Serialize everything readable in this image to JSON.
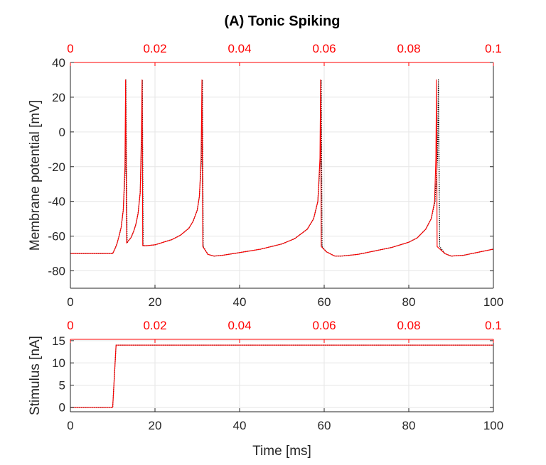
{
  "chart_data": [
    {
      "type": "line",
      "title": "(A) Tonic Spiking",
      "xlabel": "",
      "ylabel": "Membrane potential [mV]",
      "xlim": [
        0,
        100
      ],
      "ylim": [
        -90,
        40
      ],
      "xticks": [
        0,
        20,
        40,
        60,
        80,
        100
      ],
      "yticks": [
        -80,
        -60,
        -40,
        -20,
        0,
        20,
        40
      ],
      "top_axis": {
        "ticks": [
          0,
          0.02,
          0.04,
          0.06,
          0.08,
          0.1
        ],
        "labels": [
          "0",
          "0.02",
          "0.04",
          "0.06",
          "0.08",
          "0.1"
        ],
        "color": "#ff0000",
        "lim": [
          0,
          0.1
        ]
      },
      "grid": true,
      "series": [
        {
          "color": "#000000",
          "style": "dotted",
          "x": [
            0,
            10,
            10.5,
            11,
            11.5,
            12,
            12.5,
            13,
            13.1,
            13.4,
            13.6,
            14.3,
            15,
            15.5,
            16,
            16.5,
            16.9,
            17.0,
            17.2,
            18,
            20,
            22,
            24,
            26,
            28,
            29,
            30,
            30.5,
            31.0,
            31.2,
            31.4,
            32.5,
            34,
            36,
            40,
            45,
            50,
            53,
            56,
            57.5,
            58.5,
            59.1,
            59.3,
            59.5,
            60.5,
            62.5,
            64,
            68,
            72,
            76,
            80,
            82,
            84,
            85.3,
            86.2,
            86.8,
            87.0,
            87.3,
            88.5,
            90,
            93,
            96,
            100
          ],
          "y": [
            -70,
            -70,
            -67.5,
            -64.5,
            -60,
            -55,
            -45,
            -20,
            30,
            -64,
            -63,
            -61,
            -57,
            -53,
            -47,
            -35,
            0,
            30,
            -65.5,
            -65.5,
            -65,
            -63.5,
            -62,
            -59.5,
            -55.5,
            -51.5,
            -45,
            -37,
            -15,
            30,
            -66,
            -70.5,
            -71.5,
            -71,
            -69.5,
            -67.5,
            -64.5,
            -61.5,
            -56,
            -50,
            -40,
            -15,
            30,
            -66,
            -69,
            -71.5,
            -71.5,
            -70.5,
            -68.5,
            -66.5,
            -63.5,
            -61,
            -56,
            -50,
            -40,
            -15,
            30,
            -66,
            -70,
            -71.5,
            -71,
            -69.5,
            -67.5
          ]
        },
        {
          "color": "#ff0000",
          "style": "solid",
          "x": [
            0,
            10,
            10.5,
            11,
            11.5,
            12,
            12.5,
            12.9,
            13.05,
            13.3,
            13.6,
            14.3,
            15,
            15.5,
            16,
            16.5,
            16.8,
            16.95,
            17.1,
            18,
            20,
            22,
            24,
            26,
            28,
            29,
            30,
            30.5,
            30.9,
            31.1,
            31.3,
            32.5,
            34,
            36,
            40,
            45,
            50,
            53,
            56,
            57.5,
            58.5,
            59.0,
            59.15,
            59.3,
            60.5,
            62.5,
            64,
            68,
            72,
            76,
            80,
            82,
            84,
            85.3,
            86.1,
            86.4,
            86.55,
            86.7,
            88.5,
            90,
            93,
            96,
            100
          ],
          "y": [
            -70,
            -70,
            -67.5,
            -64.5,
            -60,
            -55,
            -45,
            -20,
            30,
            -64,
            -63,
            -61,
            -57,
            -53,
            -47,
            -35,
            0,
            30,
            -65.5,
            -65.5,
            -65,
            -63.5,
            -62,
            -59.5,
            -55.5,
            -51.5,
            -45,
            -37,
            -15,
            30,
            -66,
            -70.5,
            -71.5,
            -71,
            -69.5,
            -67.5,
            -64.5,
            -61.5,
            -56,
            -50,
            -40,
            -15,
            30,
            -66,
            -69,
            -71.5,
            -71.5,
            -70.5,
            -68.5,
            -66.5,
            -63.5,
            -61,
            -56,
            -50,
            -40,
            -15,
            30,
            -66,
            -70,
            -71.5,
            -71,
            -69.5,
            -67.5
          ]
        }
      ]
    },
    {
      "type": "line",
      "title": "",
      "xlabel": "Time [ms]",
      "ylabel": "Stimulus [nA]",
      "xlim": [
        0,
        100
      ],
      "ylim": [
        -1,
        15.3
      ],
      "xticks": [
        0,
        20,
        40,
        60,
        80,
        100
      ],
      "yticks": [
        0,
        5,
        10,
        15
      ],
      "top_axis": {
        "ticks": [
          0,
          0.02,
          0.04,
          0.06,
          0.08,
          0.1
        ],
        "labels": [
          "0",
          "0.02",
          "0.04",
          "0.06",
          "0.08",
          "0.1"
        ],
        "color": "#ff0000",
        "lim": [
          0,
          0.1
        ]
      },
      "grid": true,
      "series": [
        {
          "color": "#000000",
          "style": "dotted",
          "x": [
            0,
            10,
            10.8,
            100
          ],
          "y": [
            0,
            0,
            14,
            14
          ]
        },
        {
          "color": "#ff0000",
          "style": "solid",
          "x": [
            0,
            10,
            10.8,
            100
          ],
          "y": [
            0,
            0,
            14,
            14
          ]
        }
      ]
    }
  ]
}
